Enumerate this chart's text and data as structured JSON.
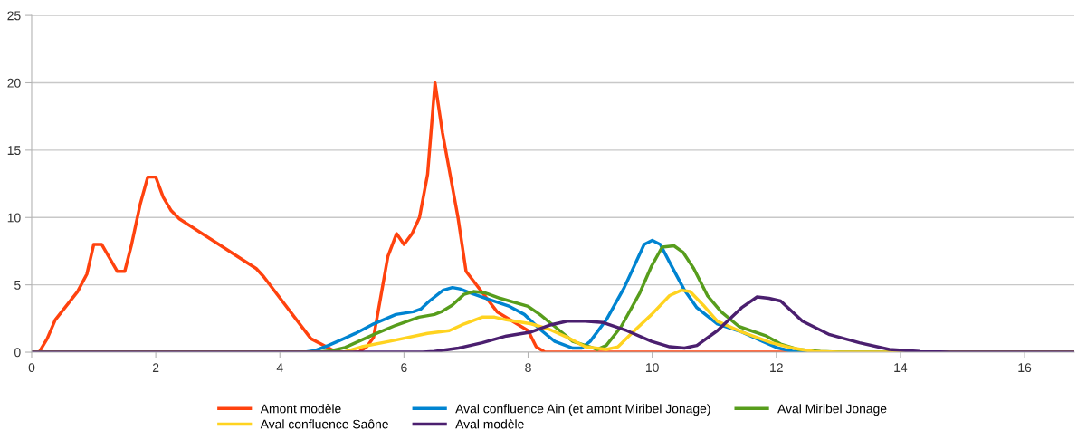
{
  "chart_data": {
    "type": "line",
    "xlim": [
      0,
      16.8
    ],
    "xticks": [
      0,
      2,
      4,
      6,
      8,
      10,
      12,
      14,
      16
    ],
    "ylim": [
      0,
      25
    ],
    "yticks": [
      0,
      5,
      10,
      15,
      20,
      25
    ],
    "grid": "y",
    "legend": "bottom",
    "marker": "none",
    "line_style": "solid",
    "series": [
      {
        "name": "Amont modèle",
        "color": "#ff420e",
        "x": [
          0,
          0.12,
          0.25,
          0.38,
          0.74,
          0.89,
          1.0,
          1.13,
          1.38,
          1.5,
          1.61,
          1.75,
          1.87,
          2.0,
          2.12,
          2.25,
          2.38,
          3.62,
          3.74,
          4.5,
          4.83,
          4.98,
          5.27,
          5.4,
          5.51,
          5.74,
          5.88,
          6.0,
          6.13,
          6.25,
          6.38,
          6.5,
          6.62,
          6.87,
          7.0,
          7.5,
          8.0,
          8.13,
          8.27,
          16.8
        ],
        "values": [
          0,
          0,
          1,
          2.4,
          4.5,
          5.8,
          8,
          8,
          6,
          6,
          8,
          11,
          13,
          13,
          11.5,
          10.5,
          9.9,
          6.2,
          5.6,
          1,
          0.2,
          0,
          0,
          0.4,
          1.1,
          7.1,
          8.8,
          8,
          8.8,
          10,
          13.2,
          20,
          16.3,
          10,
          6,
          3,
          1.6,
          0.4,
          0,
          0
        ]
      },
      {
        "name": "Aval confluence Ain (et amont Miribel Jonage)",
        "color": "#0084d1",
        "x": [
          0,
          4.4,
          4.55,
          4.78,
          5.03,
          5.22,
          5.51,
          5.87,
          6.15,
          6.27,
          6.41,
          6.63,
          6.78,
          6.9,
          7.07,
          7.32,
          7.7,
          7.94,
          8.19,
          8.43,
          8.72,
          8.86,
          9.0,
          9.26,
          9.55,
          9.87,
          10.0,
          10.13,
          10.3,
          10.52,
          10.72,
          11.05,
          11.44,
          11.78,
          12.03,
          12.27,
          12.5,
          16.8
        ],
        "values": [
          0,
          0,
          0.1,
          0.5,
          1.0,
          1.4,
          2.1,
          2.8,
          3.0,
          3.2,
          3.8,
          4.6,
          4.8,
          4.7,
          4.4,
          4.0,
          3.4,
          2.8,
          1.7,
          0.8,
          0.3,
          0.3,
          0.8,
          2.4,
          4.8,
          8.0,
          8.3,
          8.0,
          6.5,
          4.6,
          3.3,
          2.1,
          1.5,
          0.8,
          0.3,
          0.05,
          0,
          0
        ]
      },
      {
        "name": "Aval Miribel Jonage",
        "color": "#579d1c",
        "x": [
          0,
          4.6,
          4.83,
          5.05,
          5.51,
          5.87,
          6.24,
          6.49,
          6.6,
          6.78,
          6.97,
          7.12,
          7.31,
          7.55,
          8.0,
          8.19,
          8.43,
          8.72,
          9.06,
          9.11,
          9.26,
          9.5,
          9.8,
          9.99,
          10.16,
          10.35,
          10.5,
          10.67,
          10.89,
          11.11,
          11.4,
          11.84,
          12.07,
          12.36,
          12.71,
          13.0,
          16.8
        ],
        "values": [
          0,
          0,
          0.1,
          0.35,
          1.3,
          2.0,
          2.6,
          2.8,
          3.0,
          3.5,
          4.3,
          4.5,
          4.4,
          4.0,
          3.4,
          2.8,
          1.9,
          0.8,
          0.3,
          0.2,
          0.5,
          1.9,
          4.4,
          6.4,
          7.8,
          7.9,
          7.4,
          6.2,
          4.2,
          3.0,
          1.9,
          1.2,
          0.6,
          0.2,
          0.05,
          0,
          0
        ]
      },
      {
        "name": "Aval confluence Saône",
        "color": "#ffd320",
        "x": [
          0,
          5.03,
          5.32,
          5.76,
          6.38,
          6.73,
          6.97,
          7.26,
          7.46,
          7.65,
          8.05,
          8.34,
          8.63,
          8.92,
          9.26,
          9.45,
          9.69,
          9.99,
          10.28,
          10.47,
          10.61,
          10.82,
          11.05,
          11.44,
          11.92,
          12.27,
          12.6,
          13.0,
          16.8
        ],
        "values": [
          0,
          0,
          0.4,
          0.8,
          1.4,
          1.6,
          2.1,
          2.6,
          2.6,
          2.4,
          2.1,
          1.7,
          1.1,
          0.4,
          0.2,
          0.4,
          1.5,
          2.8,
          4.2,
          4.6,
          4.5,
          3.5,
          2.3,
          1.5,
          0.7,
          0.3,
          0.05,
          0,
          0
        ]
      },
      {
        "name": "Aval modèle",
        "color": "#4b1f6f",
        "x": [
          0,
          6.3,
          6.49,
          6.88,
          7.26,
          7.65,
          8.05,
          8.34,
          8.63,
          8.92,
          9.21,
          9.59,
          9.99,
          10.28,
          10.52,
          10.72,
          11.05,
          11.44,
          11.69,
          11.88,
          12.07,
          12.42,
          12.86,
          13.34,
          13.82,
          14.31,
          14.8,
          16.8
        ],
        "values": [
          0,
          0,
          0.05,
          0.3,
          0.7,
          1.2,
          1.5,
          2.0,
          2.3,
          2.3,
          2.2,
          1.6,
          0.8,
          0.4,
          0.3,
          0.5,
          1.6,
          3.3,
          4.1,
          4.0,
          3.8,
          2.3,
          1.3,
          0.7,
          0.2,
          0.05,
          0,
          0
        ]
      }
    ]
  }
}
